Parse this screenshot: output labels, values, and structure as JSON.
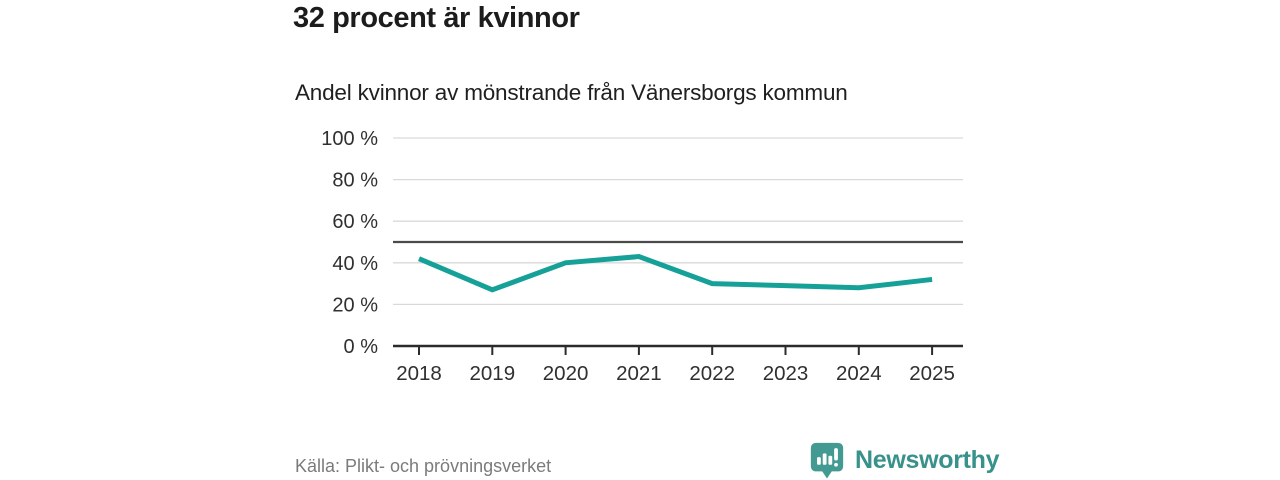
{
  "header": {
    "title": "32 procent är kvinnor",
    "subtitle": "Andel kvinnor av mönstrande från Vänersborgs kommun"
  },
  "chart_data": {
    "type": "line",
    "categories": [
      "2018",
      "2019",
      "2020",
      "2021",
      "2022",
      "2023",
      "2024",
      "2025"
    ],
    "series": [
      {
        "name": "Andel kvinnor av mönstrande",
        "values": [
          42,
          27,
          40,
          43,
          30,
          29,
          28,
          32
        ],
        "color": "#16a198"
      }
    ],
    "title": "Andel kvinnor av mönstrande från Vänersborgs kommun",
    "xlabel": "",
    "ylabel": "",
    "ylim": [
      0,
      100
    ],
    "yticks": [
      0,
      20,
      40,
      60,
      80,
      100
    ],
    "ytick_format": "{v} %",
    "grid": true,
    "legend_position": "none",
    "reference_line": {
      "value": 50,
      "color": "#4a4a4a"
    },
    "grid_color": "#d9d9d9",
    "axis_color": "#2b2b2b",
    "tick_label_color": "#303030"
  },
  "footer": {
    "source": "Källa: Plikt- och prövningsverket",
    "brand": "Newsworthy",
    "brand_color": "#38918b",
    "brand_icon_color": "#429a92"
  }
}
